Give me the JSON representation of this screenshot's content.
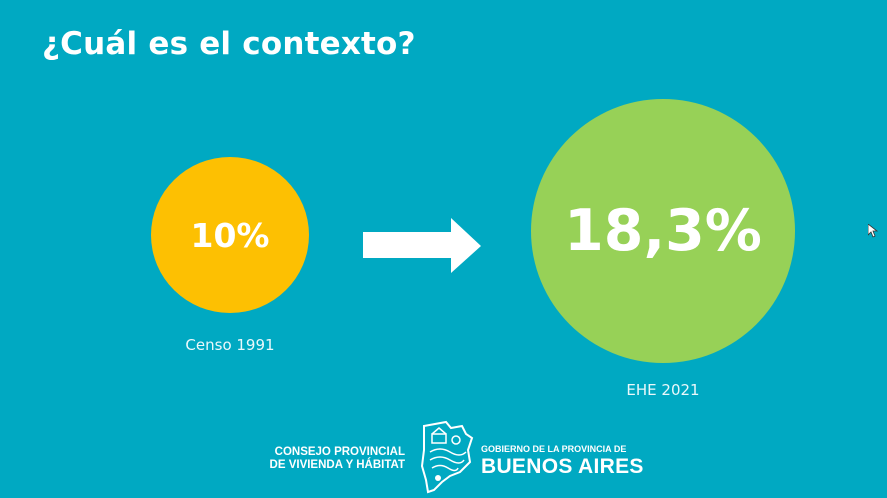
{
  "slide": {
    "title": "¿Cuál es el contexto?",
    "stats": [
      {
        "value": "10%",
        "label": "Censo 1991",
        "color": "#fdc002"
      },
      {
        "value": "18,3%",
        "label": "EHE 2021",
        "color": "#97d157"
      }
    ],
    "arrow_icon": "right-arrow-icon",
    "background_color": "#00a9c2"
  },
  "footer": {
    "org_line1": "CONSEJO PROVINCIAL",
    "org_line2": "DE VIVIENDA Y HÁBITAT",
    "logo_icon": "province-map-logo-icon",
    "gov_line": "GOBIERNO DE LA PROVINCIA DE",
    "province": "BUENOS AIRES"
  }
}
